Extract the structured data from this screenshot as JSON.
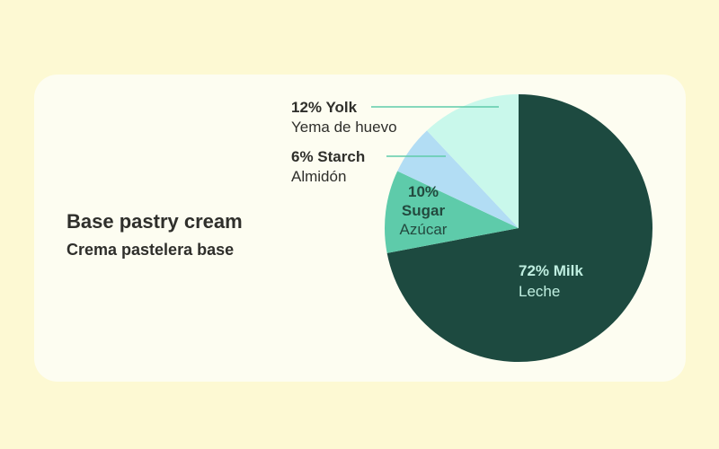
{
  "title": "Base pastry cream",
  "subtitle": "Crema pastelera base",
  "colors": {
    "background": "#fdf9d3",
    "card": "#fdfdf1",
    "text": "#2f2f2b",
    "leader": "#5ecbaa"
  },
  "chart_data": {
    "type": "pie",
    "start": "12 o'clock",
    "direction": "clockwise",
    "slices": [
      {
        "name": "Milk",
        "name_es": "Leche",
        "value": 72,
        "label": "72% Milk",
        "label_es": "Leche",
        "color": "#1d4a40",
        "text_color": "#bfeee0",
        "label_position": "inside"
      },
      {
        "name": "Sugar",
        "name_es": "Azúcar",
        "value": 10,
        "label_lines": [
          "10%",
          "Sugar"
        ],
        "label_es": "Azúcar",
        "color": "#5ecbaa",
        "text_color": "#234a3f",
        "label_position": "inside"
      },
      {
        "name": "Starch",
        "name_es": "Almidón",
        "value": 6,
        "label": "6% Starch",
        "label_es": "Almidón",
        "color": "#b2ddf4",
        "text_color": "#2f2f2b",
        "label_position": "outside-left"
      },
      {
        "name": "Yolk",
        "name_es": "Yema de huevo",
        "value": 12,
        "label": "12% Yolk",
        "label_es": "Yema de huevo",
        "color": "#c9f8eb",
        "text_color": "#2f2f2b",
        "label_position": "outside-left"
      }
    ]
  }
}
